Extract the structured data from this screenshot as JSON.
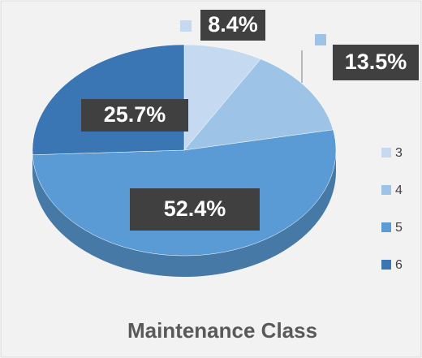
{
  "chart_data": {
    "type": "pie",
    "title": "Maintenance Class",
    "categories": [
      "3",
      "4",
      "5",
      "6"
    ],
    "values": [
      8.4,
      13.5,
      52.4,
      25.7
    ],
    "value_labels": [
      "8.4%",
      "13.5%",
      "52.4%",
      "25.7%"
    ],
    "colors": [
      "#c5d9f1",
      "#9dc3e6",
      "#5b9bd5",
      "#3a76b4"
    ],
    "legend": "right"
  }
}
